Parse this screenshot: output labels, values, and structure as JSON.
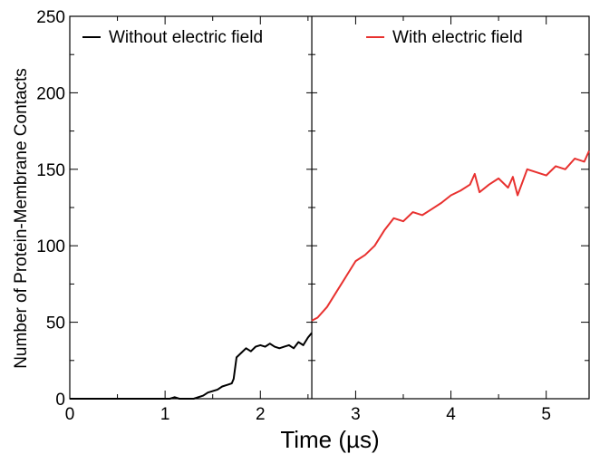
{
  "chart_data": {
    "type": "line",
    "title": "",
    "xlabel": "Time (µs)",
    "ylabel": "Number of Protein-Membrane Contacts",
    "xlim": [
      0,
      5.45
    ],
    "ylim": [
      0,
      250
    ],
    "x_ticks": [
      "0",
      "1",
      "2",
      "3",
      "4",
      "5"
    ],
    "y_ticks": [
      "0",
      "50",
      "100",
      "150",
      "200",
      "250"
    ],
    "divider_x": 2.54,
    "grid": false,
    "series": [
      {
        "name": "Without electric field",
        "color": "#000000",
        "legend_position": "top-left",
        "x": [
          0,
          0.5,
          1.0,
          1.05,
          1.1,
          1.15,
          1.2,
          1.3,
          1.4,
          1.45,
          1.5,
          1.55,
          1.6,
          1.65,
          1.7,
          1.72,
          1.75,
          1.8,
          1.85,
          1.9,
          1.95,
          2.0,
          2.05,
          2.1,
          2.15,
          2.2,
          2.25,
          2.3,
          2.35,
          2.4,
          2.45,
          2.5,
          2.54
        ],
        "y": [
          0,
          0,
          0,
          0,
          1,
          0,
          0,
          0,
          2,
          4,
          5,
          6,
          8,
          9,
          10,
          13,
          27,
          30,
          33,
          31,
          34,
          35,
          34,
          36,
          34,
          33,
          34,
          35,
          33,
          37,
          35,
          40,
          43
        ]
      },
      {
        "name": "With electric field",
        "color": "#e8312f",
        "legend_position": "top-right",
        "x": [
          2.54,
          2.6,
          2.7,
          2.8,
          2.9,
          3.0,
          3.1,
          3.2,
          3.3,
          3.4,
          3.5,
          3.6,
          3.7,
          3.8,
          3.9,
          4.0,
          4.1,
          4.2,
          4.25,
          4.3,
          4.4,
          4.5,
          4.6,
          4.65,
          4.7,
          4.8,
          4.9,
          5.0,
          5.1,
          5.2,
          5.3,
          5.4,
          5.45
        ],
        "y": [
          51,
          53,
          60,
          70,
          80,
          90,
          94,
          100,
          110,
          118,
          116,
          122,
          120,
          124,
          128,
          133,
          136,
          140,
          147,
          135,
          140,
          144,
          138,
          145,
          133,
          150,
          148,
          146,
          152,
          150,
          157,
          155,
          162
        ]
      }
    ]
  }
}
